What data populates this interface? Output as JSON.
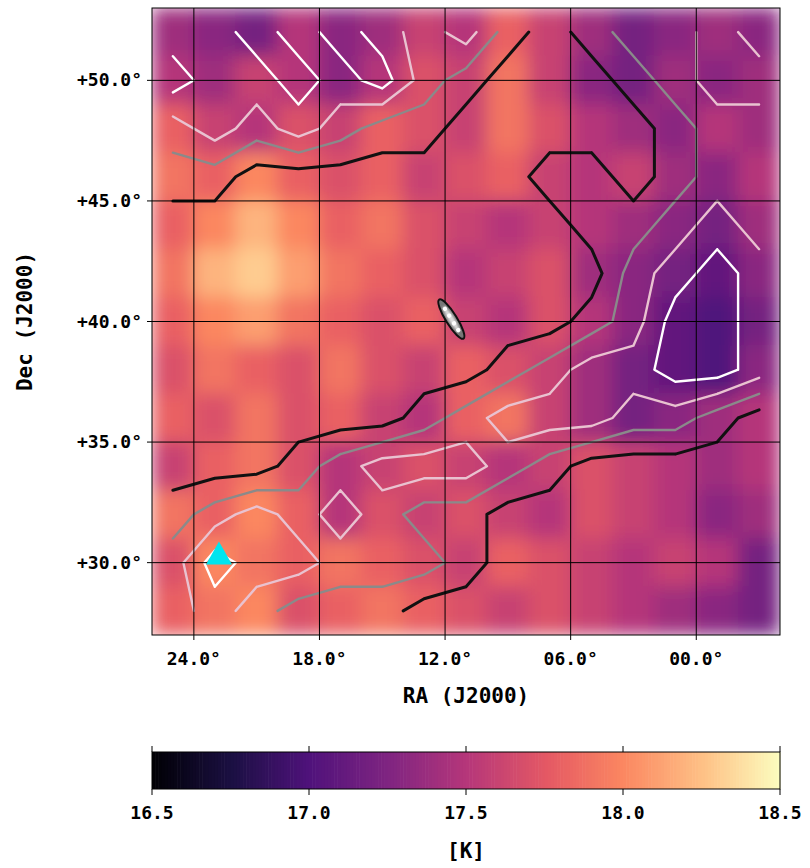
{
  "chart_data": {
    "type": "heatmap",
    "xlabel": "RA (J2000)",
    "ylabel": "Dec (J2000)",
    "xlim": [
      26,
      -4
    ],
    "ylim": [
      27,
      53
    ],
    "xticks": [
      {
        "value": 24,
        "label": "24.0°"
      },
      {
        "value": 18,
        "label": "18.0°"
      },
      {
        "value": 12,
        "label": "12.0°"
      },
      {
        "value": 6,
        "label": "06.0°"
      },
      {
        "value": 0,
        "label": "00.0°"
      }
    ],
    "yticks": [
      {
        "value": 30,
        "label": "+30.0°"
      },
      {
        "value": 35,
        "label": "+35.0°"
      },
      {
        "value": 40,
        "label": "+40.0°"
      },
      {
        "value": 45,
        "label": "+45.0°"
      },
      {
        "value": 50,
        "label": "+50.0°"
      }
    ],
    "grid": true,
    "x": [
      25,
      23,
      21,
      19,
      17,
      15,
      13,
      11,
      9,
      7,
      5,
      3,
      1,
      -1,
      -3
    ],
    "y": [
      52,
      50,
      48,
      46,
      44,
      42,
      40,
      38,
      36,
      34,
      32,
      30,
      28
    ],
    "values": [
      [
        17.4,
        17.3,
        17.2,
        17.5,
        17.3,
        17.4,
        17.6,
        17.5,
        17.8,
        17.6,
        17.4,
        17.2,
        17.3,
        17.4,
        17.3
      ],
      [
        17.5,
        17.4,
        17.6,
        17.5,
        17.3,
        17.5,
        17.7,
        17.6,
        17.9,
        17.6,
        17.3,
        17.2,
        17.4,
        17.3,
        17.4
      ],
      [
        17.8,
        17.6,
        17.5,
        17.7,
        17.6,
        17.8,
        17.7,
        17.6,
        17.9,
        17.7,
        17.5,
        17.4,
        17.3,
        17.5,
        17.4
      ],
      [
        17.9,
        17.8,
        18.0,
        17.8,
        17.7,
        17.8,
        17.6,
        17.7,
        17.8,
        17.6,
        17.5,
        17.6,
        17.4,
        17.3,
        17.5
      ],
      [
        17.8,
        18.0,
        18.2,
        18.0,
        17.8,
        17.9,
        17.7,
        17.6,
        17.5,
        17.6,
        17.5,
        17.4,
        17.3,
        17.2,
        17.4
      ],
      [
        17.9,
        18.2,
        18.3,
        18.1,
        17.9,
        17.8,
        17.7,
        17.5,
        17.6,
        17.7,
        17.4,
        17.3,
        17.2,
        17.1,
        17.3
      ],
      [
        17.8,
        18.0,
        18.1,
        17.9,
        17.8,
        17.7,
        17.8,
        17.6,
        17.5,
        17.7,
        17.5,
        17.3,
        17.1,
        17.0,
        17.2
      ],
      [
        17.7,
        17.9,
        17.8,
        17.7,
        17.9,
        17.7,
        17.6,
        17.8,
        17.7,
        17.6,
        17.4,
        17.2,
        17.1,
        17.0,
        17.3
      ],
      [
        17.8,
        17.7,
        17.9,
        17.7,
        17.8,
        17.6,
        17.5,
        17.8,
        17.9,
        17.6,
        17.4,
        17.2,
        17.3,
        17.4,
        17.5
      ],
      [
        17.6,
        17.8,
        17.9,
        17.7,
        17.5,
        17.6,
        17.7,
        17.6,
        17.5,
        17.6,
        17.7,
        17.6,
        17.5,
        17.4,
        17.5
      ],
      [
        17.9,
        17.8,
        18.0,
        17.8,
        17.5,
        17.7,
        17.6,
        17.7,
        17.6,
        17.5,
        17.7,
        17.6,
        17.5,
        17.3,
        17.4
      ],
      [
        17.7,
        18.0,
        17.9,
        17.8,
        17.9,
        17.8,
        17.7,
        17.6,
        17.8,
        17.7,
        17.6,
        17.5,
        17.6,
        17.5,
        17.2
      ],
      [
        17.8,
        17.9,
        18.0,
        17.7,
        17.8,
        17.9,
        17.8,
        17.7,
        17.6,
        17.7,
        17.6,
        17.5,
        17.4,
        17.3,
        17.2
      ]
    ],
    "colorbar": {
      "range": [
        16.5,
        18.5
      ],
      "ticks": [
        16.5,
        {
          "value": 17,
          "label": "17.0"
        },
        17.5,
        {
          "value": 18,
          "label": "18.0"
        },
        18.5
      ],
      "label": "[K]"
    },
    "contours": {
      "levels": [
        0.5,
        1.5,
        2.5,
        3.5
      ],
      "colors": [
        "#111111",
        "#8a8a8a",
        "#e9c2d0",
        "#ffffff"
      ],
      "values": [
        [
          3,
          3,
          4,
          3,
          4,
          3,
          2,
          3,
          1,
          0,
          1,
          2,
          2,
          3,
          2
        ],
        [
          4,
          3,
          3,
          4,
          3,
          4,
          2,
          1,
          0,
          0,
          0,
          1,
          2,
          3,
          3
        ],
        [
          2,
          3,
          2,
          3,
          2,
          1,
          1,
          0,
          0,
          0,
          0,
          0,
          1,
          2,
          2
        ],
        [
          1,
          1,
          0,
          0,
          0,
          0,
          0,
          0,
          0,
          1,
          1,
          0,
          1,
          2,
          2
        ],
        [
          0,
          0,
          0,
          0,
          0,
          0,
          0,
          0,
          0,
          0,
          1,
          1,
          2,
          3,
          2
        ],
        [
          0,
          0,
          0,
          0,
          0,
          0,
          0,
          0,
          0,
          0,
          0,
          2,
          3,
          4,
          3
        ],
        [
          0,
          0,
          0,
          0,
          0,
          0,
          0,
          0,
          0,
          0,
          1,
          2,
          4,
          4,
          3
        ],
        [
          0,
          0,
          0,
          0,
          0,
          0,
          0,
          0,
          1,
          2,
          3,
          3,
          4,
          4,
          3
        ],
        [
          0,
          0,
          0,
          0,
          0,
          0,
          1,
          2,
          3,
          3,
          3,
          2,
          2,
          1,
          0
        ],
        [
          0,
          0,
          0,
          1,
          2,
          3,
          3,
          3,
          2,
          1,
          0,
          0,
          0,
          0,
          0
        ],
        [
          1,
          2,
          3,
          2,
          3,
          2,
          1,
          1,
          0,
          0,
          0,
          0,
          0,
          0,
          0
        ],
        [
          2,
          4,
          3,
          3,
          2,
          2,
          2,
          1,
          0,
          0,
          0,
          0,
          0,
          0,
          0
        ],
        [
          2,
          3,
          2,
          1,
          1,
          1,
          0,
          0,
          0,
          0,
          0,
          0,
          0,
          0,
          0
        ]
      ]
    },
    "marker_point": {
      "x": 22.8,
      "y": 30.3,
      "color": "#00e5ee"
    },
    "galaxy": {
      "x": 11.7,
      "y": 40.1
    }
  }
}
